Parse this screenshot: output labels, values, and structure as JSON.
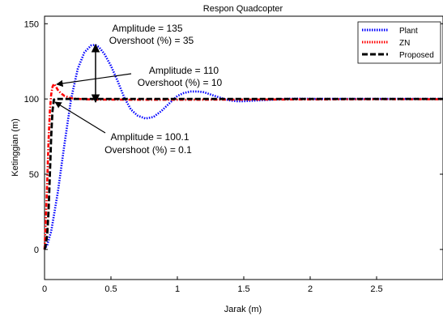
{
  "chart_data": {
    "type": "line",
    "title": "Respon Quadcopter",
    "xlabel": "Jarak (m)",
    "ylabel": "Ketinggian (m)",
    "xlim": [
      0,
      3
    ],
    "ylim": [
      -20,
      155
    ],
    "xticks": [
      0,
      0.5,
      1,
      1.5,
      2,
      2.5
    ],
    "xtick_labels": [
      "0",
      "0.5",
      "1",
      "1.5",
      "2",
      "2.5"
    ],
    "yticks": [
      0,
      50,
      100,
      150
    ],
    "ytick_labels": [
      "0",
      "50",
      "100",
      "150"
    ],
    "grid": false,
    "legend_position": "top-right",
    "series": [
      {
        "name": "Plant",
        "color": "#0000ff",
        "style": "dotted",
        "x": [
          0,
          0.02,
          0.05,
          0.1,
          0.15,
          0.2,
          0.25,
          0.3,
          0.35,
          0.38,
          0.41,
          0.45,
          0.5,
          0.55,
          0.6,
          0.65,
          0.7,
          0.76,
          0.82,
          0.88,
          0.95,
          1.0,
          1.05,
          1.1,
          1.15,
          1.2,
          1.25,
          1.3,
          1.35,
          1.4,
          1.45,
          1.5,
          1.6,
          1.7,
          1.8,
          1.9,
          2.0,
          2.2,
          2.4,
          2.6,
          2.8,
          3.0
        ],
        "y": [
          0,
          3,
          12,
          38,
          70,
          100,
          120,
          131,
          135.5,
          136,
          134.5,
          130,
          122,
          112,
          101,
          93,
          89,
          87,
          88,
          92,
          98,
          102,
          104,
          105,
          105,
          104.5,
          103,
          101.5,
          100,
          99,
          98.5,
          98.5,
          99,
          99.5,
          100,
          100.2,
          100.1,
          100,
          100,
          100,
          100,
          100
        ]
      },
      {
        "name": "ZN",
        "color": "#ff0000",
        "style": "dash-dot",
        "x": [
          0,
          0.01,
          0.02,
          0.03,
          0.04,
          0.05,
          0.06,
          0.07,
          0.08,
          0.1,
          0.12,
          0.15,
          0.2,
          0.25,
          0.3,
          0.4,
          0.5,
          0.7,
          1.0,
          1.5,
          2.0,
          2.5,
          3.0
        ],
        "y": [
          0,
          20,
          45,
          72,
          92,
          103,
          108,
          110,
          109,
          106,
          104,
          102,
          100.5,
          100,
          99.8,
          99.6,
          99.6,
          99.5,
          99.5,
          99.6,
          99.7,
          99.8,
          99.8
        ]
      },
      {
        "name": "Proposed",
        "color": "#000000",
        "style": "dashed",
        "x": [
          0,
          0.01,
          0.02,
          0.03,
          0.04,
          0.05,
          0.06,
          0.07,
          0.08,
          0.1,
          0.2,
          0.5,
          1.0,
          1.5,
          2.0,
          2.5,
          3.0
        ],
        "y": [
          0,
          3,
          10,
          25,
          50,
          75,
          92,
          99.5,
          100.1,
          100,
          100,
          100,
          100,
          100,
          100,
          100,
          100
        ]
      }
    ],
    "annotations": [
      {
        "lines": [
          "Amplitude = 135",
          "Overshoot (%) = 35"
        ]
      },
      {
        "lines": [
          "Amplitude = 110",
          "Overshoot (%) = 10"
        ]
      },
      {
        "lines": [
          "Amplitude = 100.1",
          "Overshoot (%) = 0.1"
        ]
      }
    ]
  }
}
